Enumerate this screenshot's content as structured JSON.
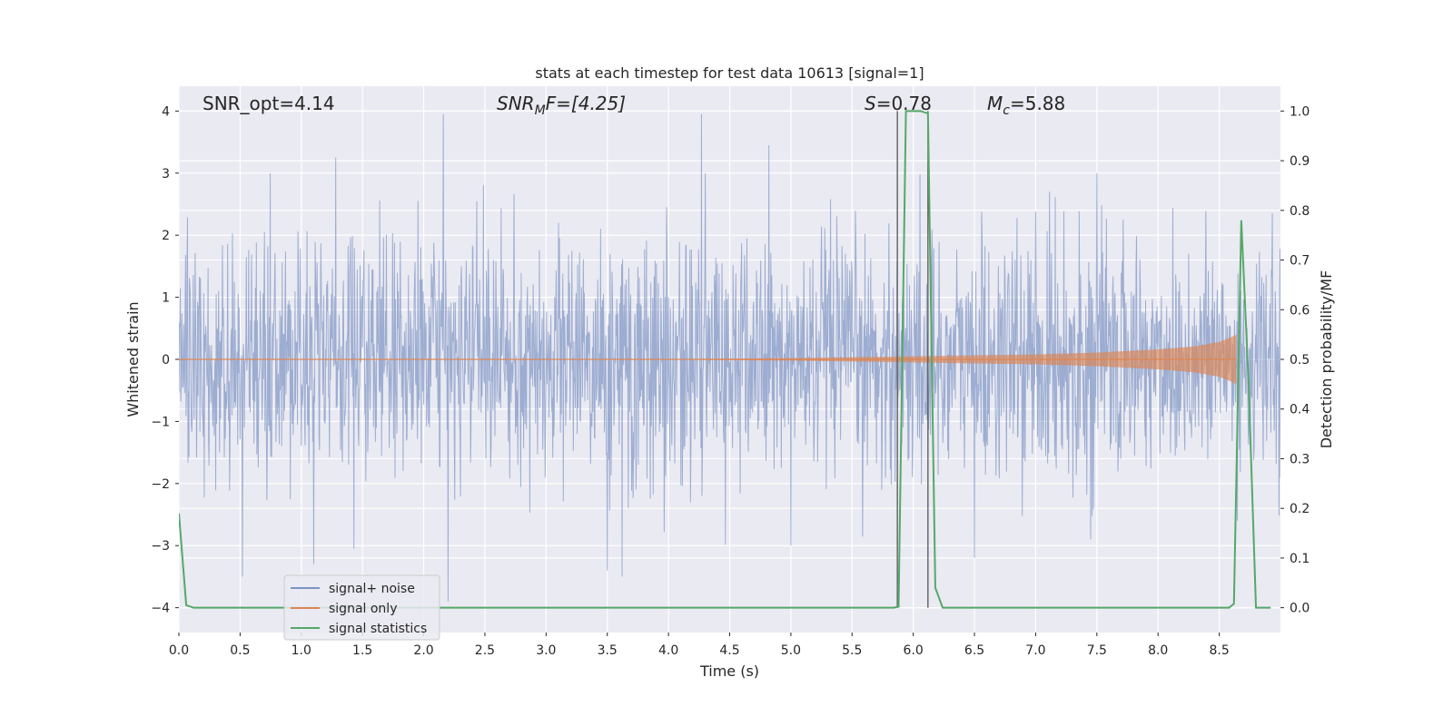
{
  "chart_data": {
    "type": "line",
    "title": "stats at each timestep for test data 10613 [signal=1]",
    "xlabel": "Time (s)",
    "ylabel_left": "Whitened strain",
    "ylabel_right": "Detection probability/MF",
    "xlim": [
      0.0,
      9.0
    ],
    "ylim_left": [
      -4.4,
      4.4
    ],
    "ylim_right": [
      -0.05,
      1.05
    ],
    "grid": true,
    "legend_position": "lower-left",
    "x_ticks": [
      "0.0",
      "0.5",
      "1.0",
      "1.5",
      "2.0",
      "2.5",
      "3.0",
      "3.5",
      "4.0",
      "4.5",
      "5.0",
      "5.5",
      "6.0",
      "6.5",
      "7.0",
      "7.5",
      "8.0",
      "8.5"
    ],
    "y_ticks_left": [
      "−4",
      "−3",
      "−2",
      "−1",
      "0",
      "1",
      "2",
      "3",
      "4"
    ],
    "y_ticks_right": [
      "0.0",
      "0.1",
      "0.2",
      "0.3",
      "0.4",
      "0.5",
      "0.6",
      "0.7",
      "0.8",
      "0.9",
      "1.0"
    ],
    "annotations": {
      "snr_opt": "SNR_opt=4.14",
      "snr_mf_sym": "SNR",
      "snr_mf_sub": "M",
      "snr_mf_rest": "F=[4.25]",
      "s_sym": "S",
      "s_rest": "=0.78",
      "mc_sym": "M",
      "mc_sub": "c",
      "mc_rest": "=5.88"
    },
    "vlines_x": [
      5.87,
      6.12
    ],
    "series": [
      {
        "name": "signal+ noise",
        "axis": "left",
        "color": "#7c93c3",
        "sample_rate": 256,
        "amplitude_std": 0.95,
        "extremes": [
          {
            "x": 0.52,
            "y": -3.5
          },
          {
            "x": 1.1,
            "y": -3.3
          },
          {
            "x": 1.28,
            "y": 3.25
          },
          {
            "x": 1.43,
            "y": -3.05
          },
          {
            "x": 2.16,
            "y": 3.95
          },
          {
            "x": 2.2,
            "y": -3.9
          },
          {
            "x": 3.5,
            "y": -3.4
          },
          {
            "x": 3.62,
            "y": -3.5
          },
          {
            "x": 4.27,
            "y": 3.95
          },
          {
            "x": 4.82,
            "y": 3.45
          },
          {
            "x": 5.0,
            "y": -3.0
          },
          {
            "x": 6.5,
            "y": -3.2
          },
          {
            "x": 7.45,
            "y": -2.9
          },
          {
            "x": 7.5,
            "y": 3.0
          },
          {
            "x": 8.65,
            "y": -2.6
          }
        ]
      },
      {
        "name": "signal only",
        "axis": "left",
        "color": "#dd8452",
        "envelope": [
          {
            "x": 3.8,
            "y": 0.0
          },
          {
            "x": 5.0,
            "y": 0.02
          },
          {
            "x": 6.0,
            "y": 0.05
          },
          {
            "x": 7.0,
            "y": 0.08
          },
          {
            "x": 7.5,
            "y": 0.11
          },
          {
            "x": 8.0,
            "y": 0.16
          },
          {
            "x": 8.3,
            "y": 0.21
          },
          {
            "x": 8.5,
            "y": 0.28
          },
          {
            "x": 8.6,
            "y": 0.36
          },
          {
            "x": 8.64,
            "y": 0.4
          }
        ]
      },
      {
        "name": "signal statistics",
        "axis": "right",
        "color": "#55a868",
        "points": [
          {
            "x": 0.0,
            "y": 0.19
          },
          {
            "x": 0.06,
            "y": 0.005
          },
          {
            "x": 0.12,
            "y": 0.0
          },
          {
            "x": 5.84,
            "y": 0.0
          },
          {
            "x": 5.88,
            "y": 0.002
          },
          {
            "x": 5.94,
            "y": 1.0
          },
          {
            "x": 6.0,
            "y": 1.0
          },
          {
            "x": 6.06,
            "y": 1.0
          },
          {
            "x": 6.12,
            "y": 0.995
          },
          {
            "x": 6.18,
            "y": 0.04
          },
          {
            "x": 6.24,
            "y": 0.0
          },
          {
            "x": 8.58,
            "y": 0.0
          },
          {
            "x": 8.62,
            "y": 0.008
          },
          {
            "x": 8.68,
            "y": 0.78
          },
          {
            "x": 8.74,
            "y": 0.45
          },
          {
            "x": 8.8,
            "y": 0.0
          },
          {
            "x": 8.92,
            "y": 0.0
          }
        ]
      }
    ]
  }
}
